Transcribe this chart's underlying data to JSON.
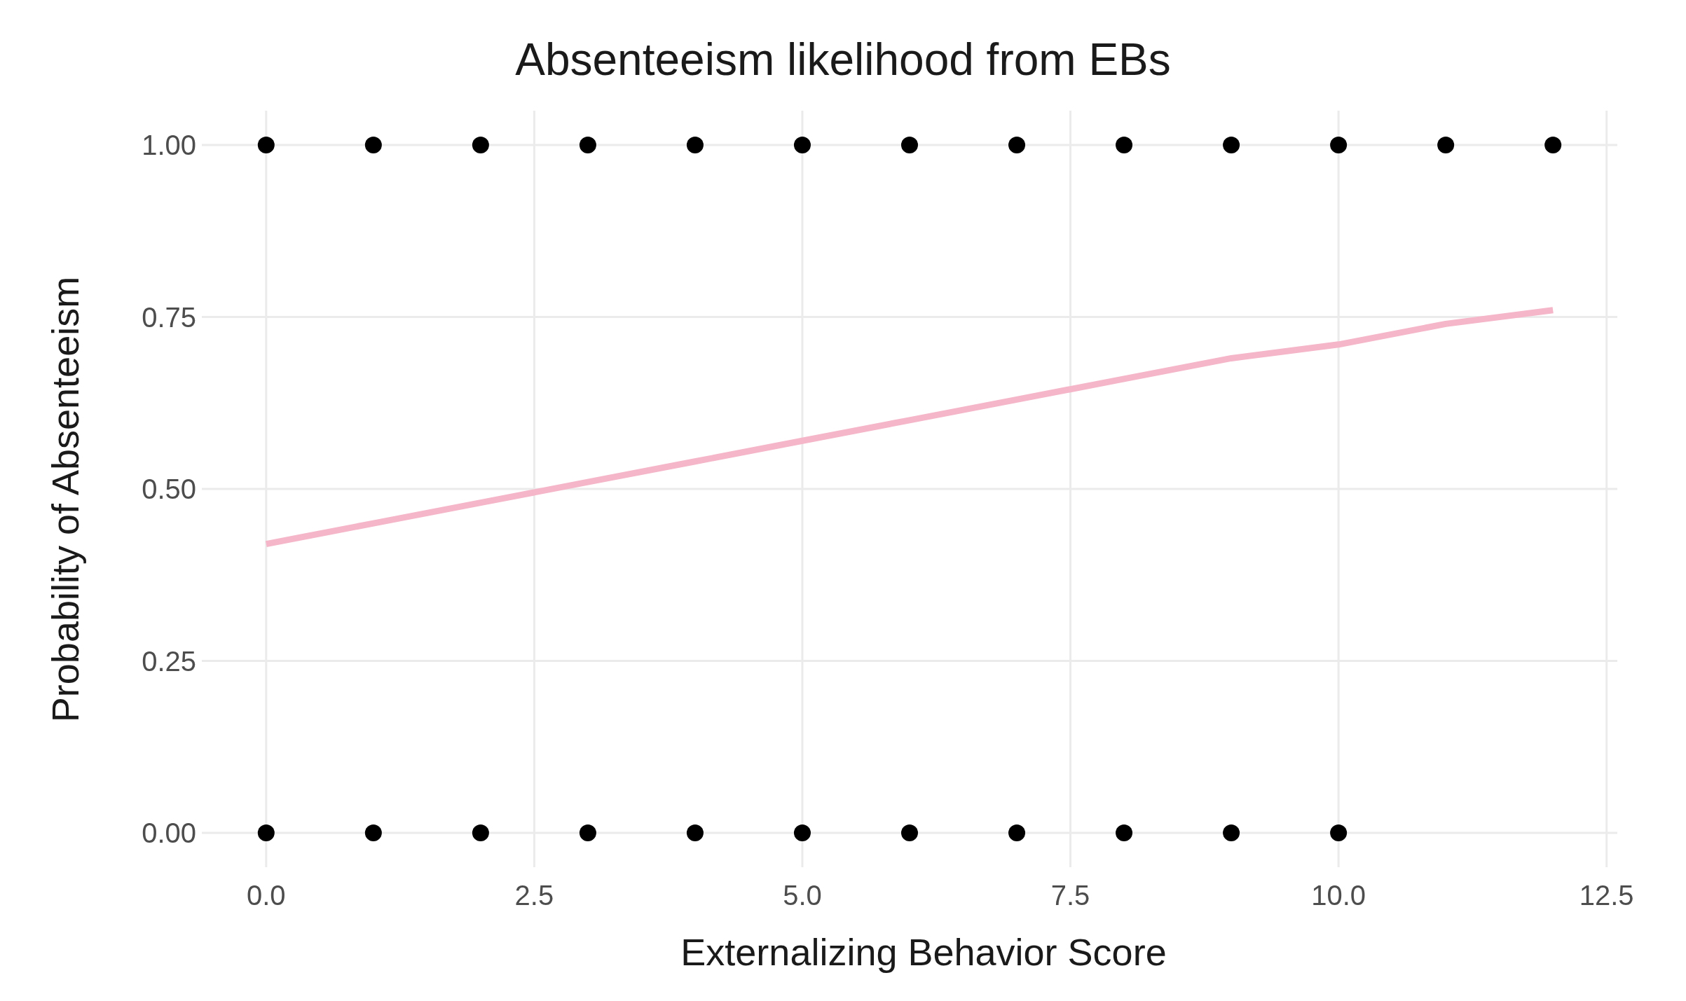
{
  "chart_data": {
    "type": "scatter",
    "title": "Absenteeism likelihood from EBs",
    "xlabel": "Externalizing Behavior Score",
    "ylabel": "Probability of Absenteeism",
    "series": [
      {
        "color": "#000000",
        "marker": "circle",
        "x": [
          0,
          1,
          2,
          3,
          4,
          5,
          6,
          7,
          8,
          9,
          10,
          11,
          12,
          0,
          1,
          2,
          3,
          4,
          5,
          6,
          7,
          8,
          9,
          10
        ],
        "values": [
          1,
          1,
          1,
          1,
          1,
          1,
          1,
          1,
          1,
          1,
          1,
          1,
          1,
          0,
          0,
          0,
          0,
          0,
          0,
          0,
          0,
          0,
          0,
          0
        ]
      },
      {
        "type": "line",
        "color": "#f4b6c8",
        "marker": "none",
        "x": [
          0,
          1,
          2,
          3,
          4,
          5,
          6,
          7,
          8,
          9,
          10,
          11,
          12
        ],
        "values": [
          0.42,
          0.45,
          0.48,
          0.51,
          0.54,
          0.57,
          0.6,
          0.63,
          0.66,
          0.69,
          0.71,
          0.74,
          0.76
        ]
      }
    ],
    "xlim": [
      -0.6,
      12.6
    ],
    "xticks": [
      {
        "value": 0,
        "label": "0.0"
      },
      {
        "value": 2.5,
        "label": "2.5"
      },
      {
        "value": 5,
        "label": "5.0"
      },
      {
        "value": 7.5,
        "label": "7.5"
      },
      {
        "value": 10,
        "label": "10.0"
      },
      {
        "value": 12.5,
        "label": "12.5"
      }
    ],
    "ylim": [
      -0.05,
      1.05
    ],
    "yticks": [
      {
        "value": 0,
        "label": "0.00"
      },
      {
        "value": 0.25,
        "label": "0.25"
      },
      {
        "value": 0.5,
        "label": "0.50"
      },
      {
        "value": 0.75,
        "label": "0.75"
      },
      {
        "value": 1,
        "label": "1.00"
      }
    ],
    "grid": true,
    "line_style": "solid"
  }
}
